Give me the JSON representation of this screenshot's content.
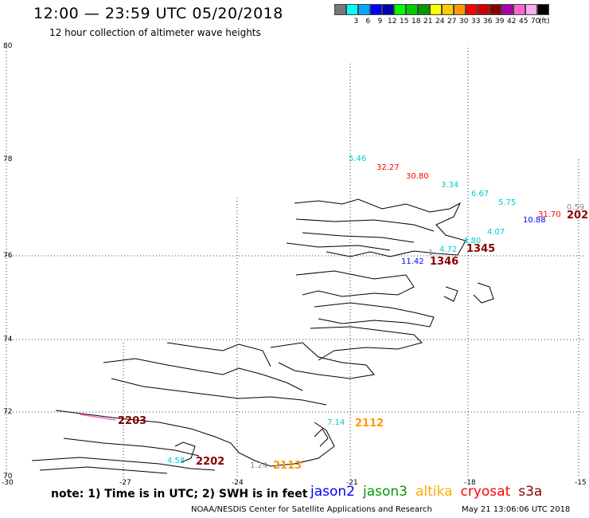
{
  "header": {
    "title": "12:00 — 23:59 UTC 05/20/2018",
    "subtitle": "12 hour collection of altimeter wave heights"
  },
  "legend": {
    "swatches": [
      {
        "color": "#777777",
        "label": ""
      },
      {
        "color": "#00ffff",
        "label": "3"
      },
      {
        "color": "#00aaff",
        "label": "6"
      },
      {
        "color": "#0000ff",
        "label": "9"
      },
      {
        "color": "#0000aa",
        "label": "12"
      },
      {
        "color": "#00ff00",
        "label": "15"
      },
      {
        "color": "#00cc00",
        "label": "18"
      },
      {
        "color": "#009900",
        "label": "21"
      },
      {
        "color": "#ffff00",
        "label": "24"
      },
      {
        "color": "#ffcc00",
        "label": "27"
      },
      {
        "color": "#ff9900",
        "label": "30"
      },
      {
        "color": "#ff0000",
        "label": "33"
      },
      {
        "color": "#cc0000",
        "label": "36"
      },
      {
        "color": "#880000",
        "label": "39"
      },
      {
        "color": "#aa00aa",
        "label": "42"
      },
      {
        "color": "#ff66cc",
        "label": "45"
      },
      {
        "color": "#ffaaee",
        "label": "70"
      },
      {
        "color": "#000000",
        "label": "(ft)"
      }
    ]
  },
  "map": {
    "lat_labels": [
      "80",
      "78",
      "76",
      "74",
      "72",
      "70"
    ],
    "lon_labels": [
      "-30",
      "-27",
      "-24",
      "-21",
      "-18",
      "-15"
    ],
    "wave_labels": [
      {
        "text": "5.46",
        "color": "#00cccc"
      },
      {
        "text": "32.27",
        "color": "#ff0000"
      },
      {
        "text": "30.80",
        "color": "#ff0000"
      },
      {
        "text": "3.34",
        "color": "#00cccc"
      },
      {
        "text": "6.67",
        "color": "#00cccc"
      },
      {
        "text": "5.75",
        "color": "#00cccc"
      },
      {
        "text": "0.59",
        "color": "#888888"
      },
      {
        "text": "31.70",
        "color": "#ff0000"
      },
      {
        "text": "10.88",
        "color": "#0000ff"
      },
      {
        "text": "4.07",
        "color": "#00cccc"
      },
      {
        "text": "4.80",
        "color": "#00cccc"
      },
      {
        "text": "4.72",
        "color": "#00cccc"
      },
      {
        "text": "1.",
        "color": "#888888"
      },
      {
        "text": "11.42",
        "color": "#0000ff"
      },
      {
        "text": "7.14",
        "color": "#00cccc"
      },
      {
        "text": "4.58",
        "color": "#00cccc"
      },
      {
        "text": "1.24",
        "color": "#888888"
      }
    ],
    "time_labels": [
      {
        "text": "202",
        "color": "#880000"
      },
      {
        "text": "1345",
        "color": "#880000"
      },
      {
        "text": "1346",
        "color": "#880000"
      },
      {
        "text": "2203",
        "color": "#880000"
      },
      {
        "text": "2112",
        "color": "#ff9900"
      },
      {
        "text": "2202",
        "color": "#880000"
      },
      {
        "text": "2113",
        "color": "#ff9900"
      }
    ]
  },
  "footer": {
    "note": "note: 1) Time is in UTC; 2) SWH is in feet",
    "satellites": [
      {
        "name": "jason2",
        "color": "#0000ff"
      },
      {
        "name": "jason3",
        "color": "#009900"
      },
      {
        "name": "altika",
        "color": "#ffaa00"
      },
      {
        "name": "cryosat",
        "color": "#ff0000"
      },
      {
        "name": "s3a",
        "color": "#880000"
      }
    ],
    "credit": "NOAA/NESDIS Center for Satellite Applications and Research",
    "date": "May 21 13:06:06 UTC 2018"
  }
}
